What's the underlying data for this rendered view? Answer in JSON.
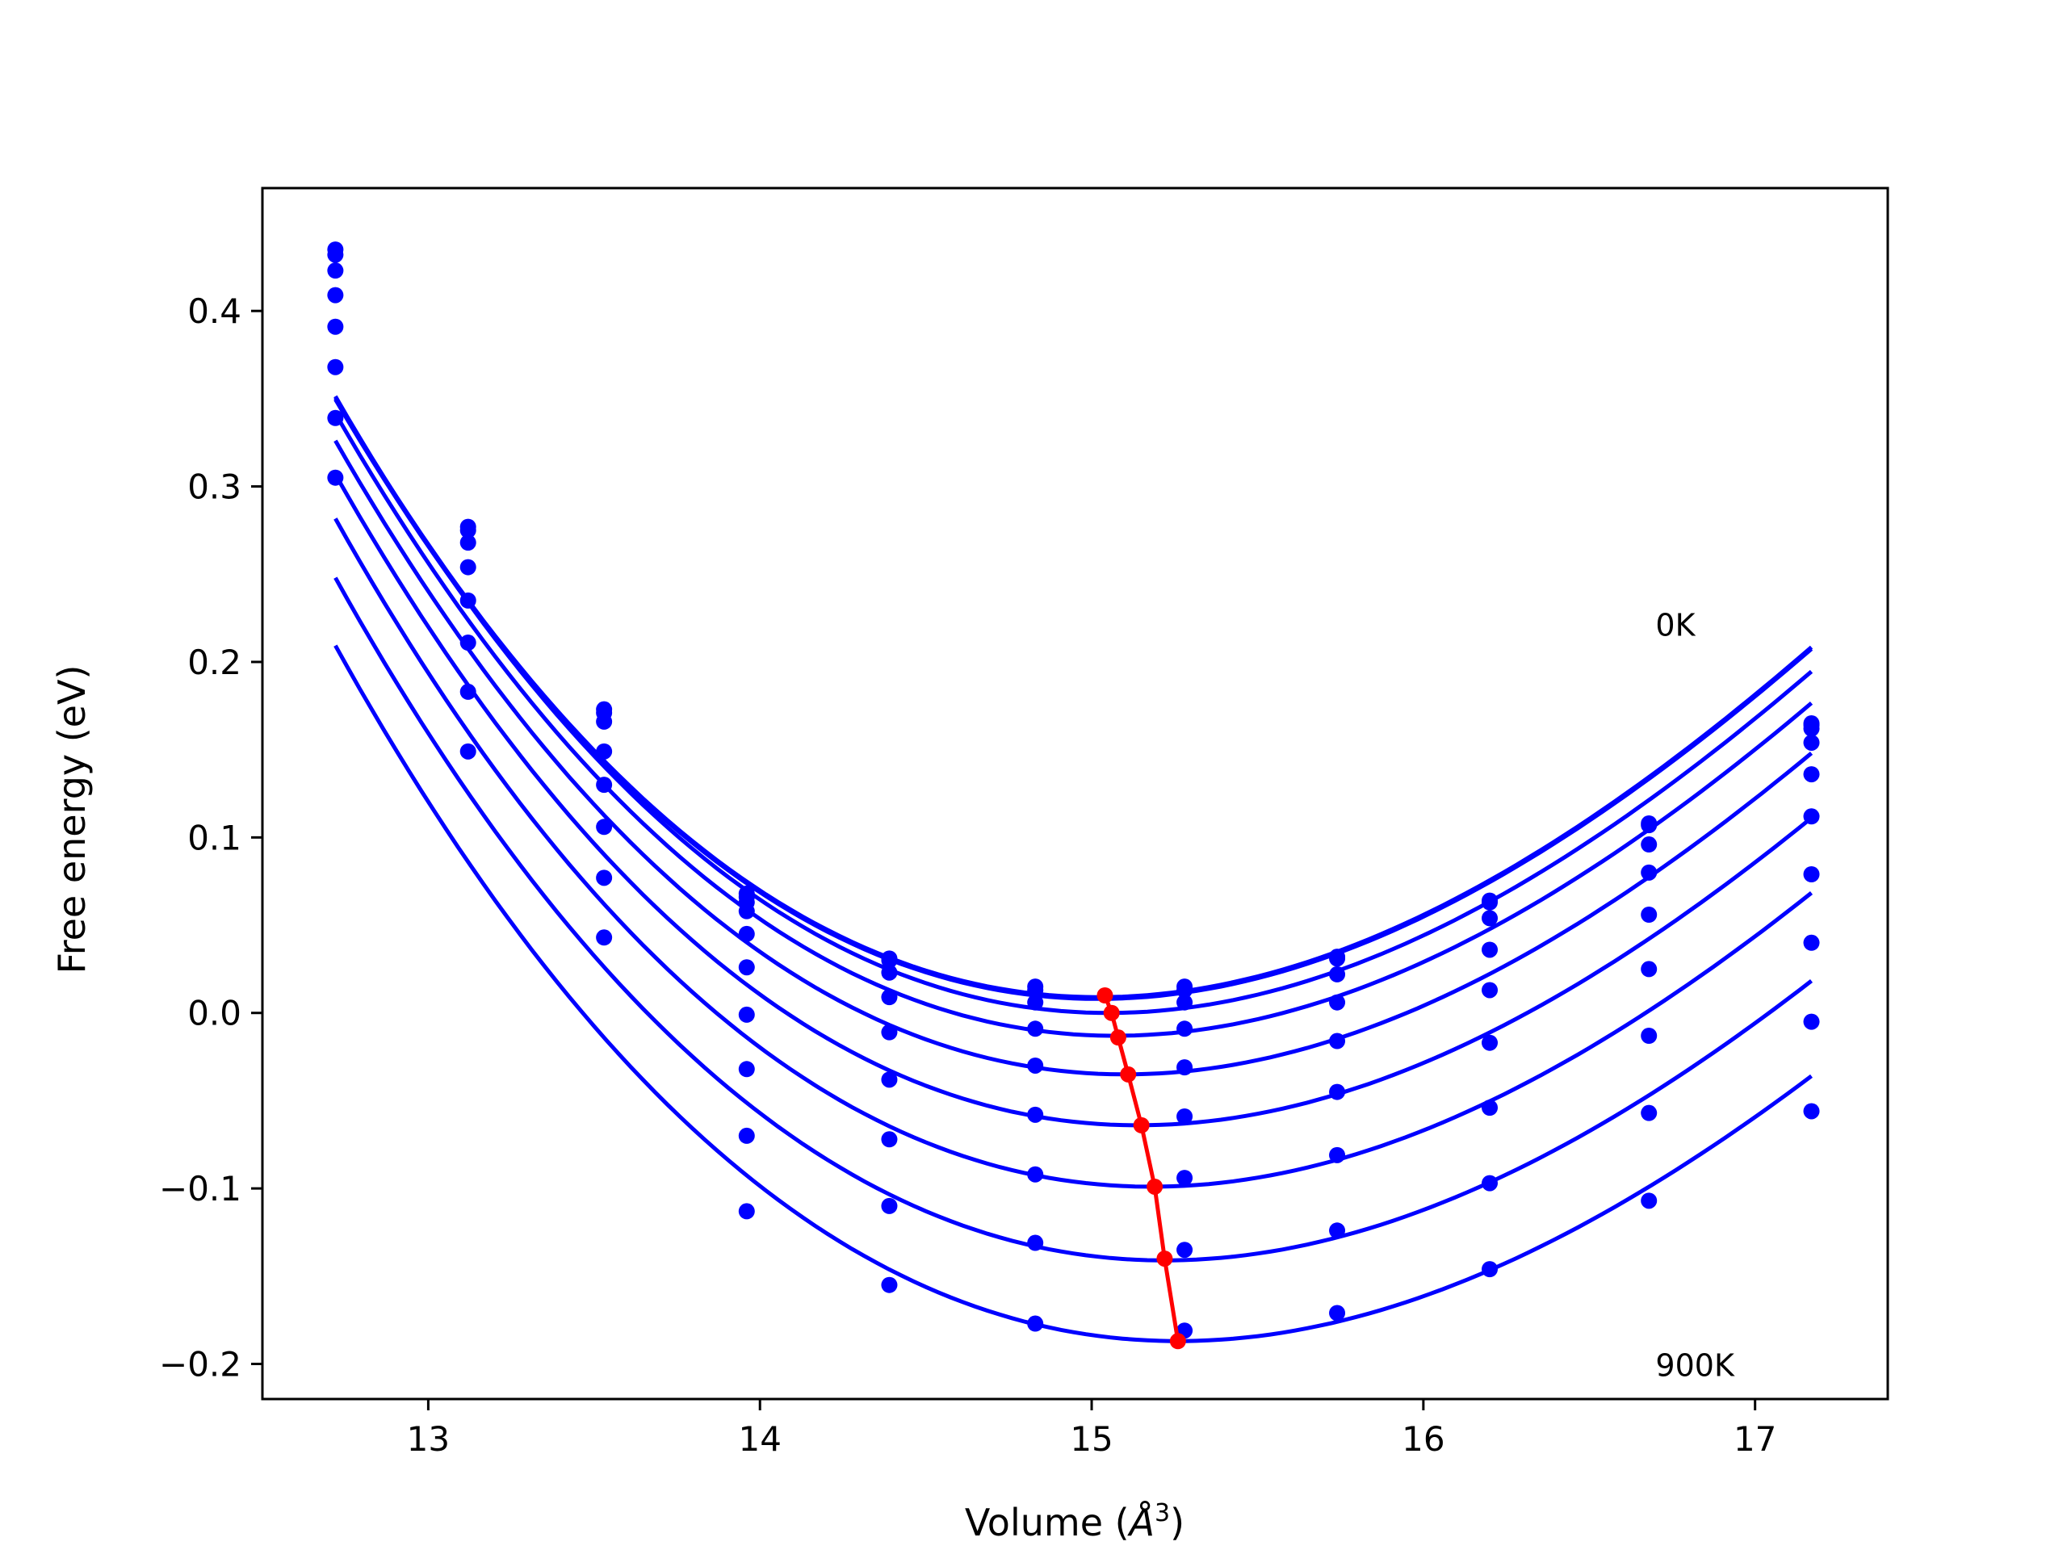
{
  "chart_data": {
    "type": "line",
    "title": "",
    "xlabel": "Volume (",
    "xlabel_unit": "Å",
    "xlabel_exp": "3",
    "xlabel_close": ")",
    "ylabel": "Free energy (eV)",
    "xlim": [
      12.5,
      17.4
    ],
    "ylim": [
      -0.22,
      0.47
    ],
    "xticks": [
      13,
      14,
      15,
      16,
      17
    ],
    "xtick_labels": [
      "13",
      "14",
      "15",
      "16",
      "17"
    ],
    "yticks": [
      -0.2,
      -0.1,
      0.0,
      0.1,
      0.2,
      0.3,
      0.4
    ],
    "ytick_labels": [
      "−0.2",
      "−0.1",
      "0.0",
      "0.1",
      "0.2",
      "0.3",
      "0.4"
    ],
    "grid": false,
    "colors": {
      "series": "#0000ff",
      "minima": "#ff0000"
    },
    "annotations": [
      {
        "text": "0K",
        "x": 16.7,
        "y": 0.215
      },
      {
        "text": "900K",
        "x": 16.7,
        "y": -0.207
      }
    ],
    "x": [
      12.72,
      13.12,
      13.53,
      13.96,
      14.39,
      14.83,
      15.28,
      15.74,
      16.2,
      16.68,
      17.17
    ],
    "series": [
      {
        "points": [
          0.435,
          0.277,
          0.173,
          0.068,
          0.031,
          0.015,
          0.015,
          0.032,
          0.064,
          0.108,
          0.165
        ]
      },
      {
        "points": [
          0.432,
          0.275,
          0.171,
          0.066,
          0.03,
          0.013,
          0.013,
          0.031,
          0.063,
          0.107,
          0.164
        ]
      },
      {
        "points": [
          0.423,
          0.268,
          0.166,
          0.063,
          0.023,
          0.006,
          0.006,
          0.022,
          0.054,
          0.096,
          0.162
        ]
      },
      {
        "points": [
          0.409,
          0.254,
          0.149,
          0.058,
          0.009,
          -0.009,
          -0.009,
          0.006,
          0.036,
          0.08,
          0.154
        ]
      },
      {
        "points": [
          0.391,
          0.235,
          0.13,
          0.045,
          -0.011,
          -0.03,
          -0.031,
          -0.016,
          0.013,
          0.056,
          0.136
        ]
      },
      {
        "points": [
          0.368,
          0.211,
          0.106,
          0.026,
          -0.038,
          -0.058,
          -0.059,
          -0.045,
          -0.017,
          0.025,
          0.112
        ]
      },
      {
        "points": [
          0.339,
          0.183,
          0.077,
          -0.001,
          -0.072,
          -0.092,
          -0.094,
          -0.081,
          -0.054,
          -0.013,
          0.079
        ]
      },
      {
        "points": [
          0.305,
          0.149,
          0.043,
          -0.032,
          -0.11,
          -0.131,
          -0.135,
          -0.124,
          -0.097,
          -0.057,
          0.04
        ]
      },
      {
        "points": [
          null,
          null,
          null,
          -0.07,
          -0.155,
          -0.177,
          -0.181,
          -0.171,
          -0.146,
          -0.107,
          -0.005
        ]
      },
      {
        "points": [
          null,
          null,
          null,
          -0.113,
          null,
          null,
          null,
          null,
          null,
          null,
          -0.056
        ]
      }
    ],
    "fits": [
      {
        "v0": 15.02,
        "f0": 0.009,
        "b": 0.0535
      },
      {
        "v0": 15.02,
        "f0": 0.008,
        "b": 0.0535
      },
      {
        "v0": 15.05,
        "f0": 0.0,
        "b": 0.0535
      },
      {
        "v0": 15.07,
        "f0": -0.013,
        "b": 0.053
      },
      {
        "v0": 15.1,
        "f0": -0.035,
        "b": 0.0525
      },
      {
        "v0": 15.14,
        "f0": -0.064,
        "b": 0.052
      },
      {
        "v0": 15.18,
        "f0": -0.099,
        "b": 0.0515
      },
      {
        "v0": 15.22,
        "f0": -0.141,
        "b": 0.0508
      },
      {
        "v0": 15.26,
        "f0": -0.187,
        "b": 0.05
      }
    ],
    "minima": {
      "x": [
        15.04,
        15.06,
        15.08,
        15.11,
        15.15,
        15.19,
        15.22,
        15.26
      ],
      "y": [
        0.01,
        0.0,
        -0.014,
        -0.035,
        -0.064,
        -0.099,
        -0.14,
        -0.187
      ]
    }
  }
}
